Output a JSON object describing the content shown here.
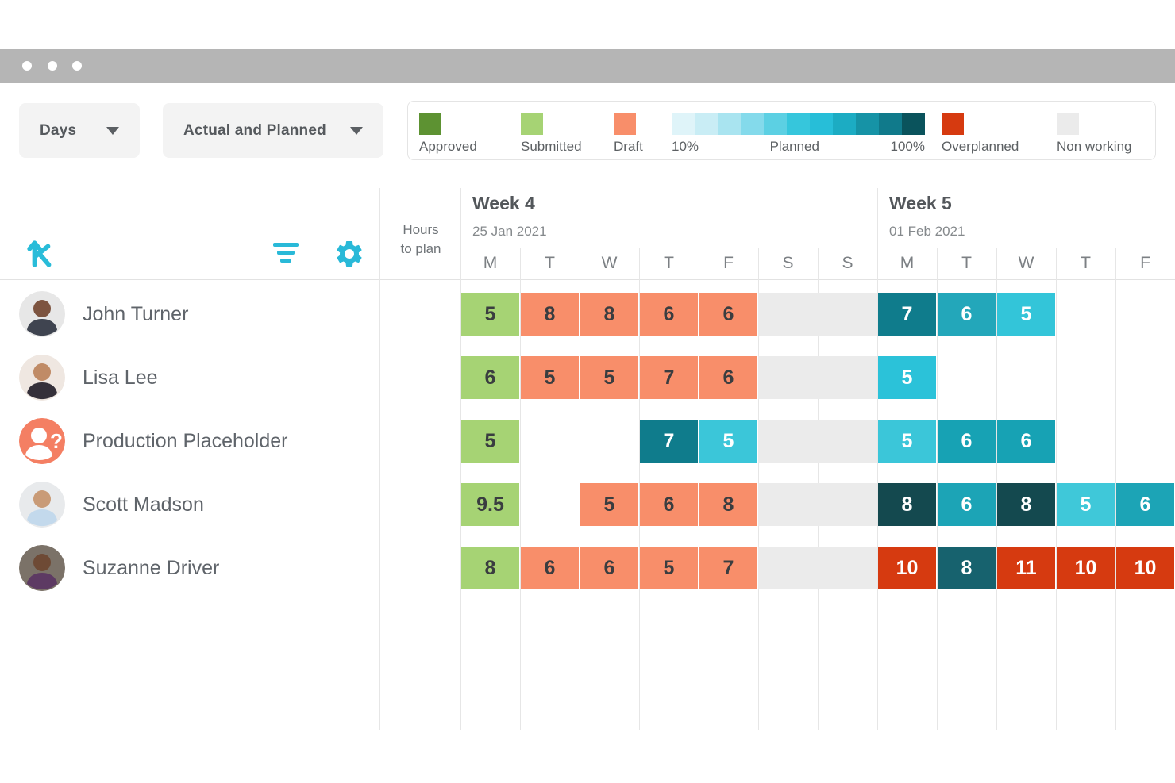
{
  "window": {
    "dot_count": 3
  },
  "toolbar": {
    "timescale_label": "Days",
    "view_label": "Actual and Planned"
  },
  "colors": {
    "accent": "#29b9d8",
    "approved": "#5d9232",
    "submitted": "#a6d374",
    "draft": "#f88e6a",
    "non_working": "#ebebeb",
    "overplanned": "#d63a10"
  },
  "legend": {
    "items": [
      {
        "kind": "swatch",
        "label": "Approved",
        "color": "#5d9232",
        "striped": true
      },
      {
        "kind": "swatch",
        "label": "Submitted",
        "color": "#a6d374",
        "striped": true
      },
      {
        "kind": "swatch",
        "label": "Draft",
        "color": "#f88e6a",
        "striped": true
      },
      {
        "kind": "gradient",
        "left_label": "10%",
        "mid_label": "Planned",
        "right_label": "100%",
        "colors": [
          "#dff4f9",
          "#c9edf5",
          "#a9e4f0",
          "#84daeb",
          "#5cd0e3",
          "#36c6dc",
          "#27bed8",
          "#1cacc3",
          "#1693a6",
          "#107a8b",
          "#0a535c"
        ]
      },
      {
        "kind": "swatch",
        "label": "Overplanned",
        "color": "#d63a10",
        "striped": false
      },
      {
        "kind": "swatch",
        "label": "Non working",
        "color": "#ebebeb",
        "striped": false
      }
    ]
  },
  "timeline": {
    "hours_label_line1": "Hours",
    "hours_label_line2": "to plan",
    "weeks": [
      {
        "title": "Week 4",
        "date": "25 Jan 2021",
        "days": [
          "M",
          "T",
          "W",
          "T",
          "F",
          "S",
          "S"
        ]
      },
      {
        "title": "Week 5",
        "date": "01 Feb 2021",
        "days": [
          "M",
          "T",
          "W",
          "T",
          "F"
        ]
      }
    ]
  },
  "rows": [
    {
      "name": "John Turner",
      "avatar": {
        "bg": "#e7e7e7",
        "skin": "#7d5440",
        "shirt": "#3f4450"
      },
      "cells": [
        {
          "t": "sub",
          "v": "5"
        },
        {
          "t": "draft",
          "v": "8"
        },
        {
          "t": "draft",
          "v": "8"
        },
        {
          "t": "draft",
          "v": "6"
        },
        {
          "t": "draft",
          "v": "6"
        },
        {
          "t": "non"
        },
        {
          "t": "non"
        },
        {
          "t": "plan",
          "v": "7",
          "c": "#0f7c8c"
        },
        {
          "t": "plan",
          "v": "6",
          "c": "#23a7ba"
        },
        {
          "t": "plan",
          "v": "5",
          "c": "#33c5d9"
        },
        null,
        null
      ]
    },
    {
      "name": "Lisa Lee",
      "avatar": {
        "bg": "#efe7e1",
        "skin": "#c08b66",
        "shirt": "#34303a"
      },
      "cells": [
        {
          "t": "sub",
          "v": "6"
        },
        {
          "t": "draft",
          "v": "5"
        },
        {
          "t": "draft",
          "v": "5"
        },
        {
          "t": "draft",
          "v": "7"
        },
        {
          "t": "draft",
          "v": "6"
        },
        {
          "t": "non"
        },
        {
          "t": "non"
        },
        {
          "t": "plan",
          "v": "5",
          "c": "#2bc2d9"
        },
        null,
        null,
        null,
        null
      ]
    },
    {
      "name": "Production Placeholder",
      "avatar": {
        "placeholder": true,
        "bg": "#f47f63"
      },
      "cells": [
        {
          "t": "sub",
          "v": "5"
        },
        null,
        null,
        {
          "t": "plan",
          "v": "7",
          "c": "#0f7c8c"
        },
        {
          "t": "plan",
          "v": "5",
          "c": "#3bc6d9"
        },
        {
          "t": "non"
        },
        {
          "t": "non"
        },
        {
          "t": "plan",
          "v": "5",
          "c": "#3bc6d9"
        },
        {
          "t": "plan",
          "v": "6",
          "c": "#17a2b4"
        },
        {
          "t": "plan",
          "v": "6",
          "c": "#17a2b4"
        },
        null,
        null
      ]
    },
    {
      "name": "Scott Madson",
      "avatar": {
        "bg": "#e8eaec",
        "skin": "#c99b77",
        "shirt": "#c3d9ec"
      },
      "cells": [
        {
          "t": "sub",
          "v": "9.5"
        },
        null,
        {
          "t": "draft",
          "v": "5"
        },
        {
          "t": "draft",
          "v": "6"
        },
        {
          "t": "draft",
          "v": "8"
        },
        {
          "t": "non"
        },
        {
          "t": "non"
        },
        {
          "t": "plan",
          "v": "8",
          "c": "#14494f"
        },
        {
          "t": "plan",
          "v": "6",
          "c": "#1ca4b6"
        },
        {
          "t": "plan",
          "v": "8",
          "c": "#14494f"
        },
        {
          "t": "plan",
          "v": "5",
          "c": "#3fc8d9"
        },
        {
          "t": "plan",
          "v": "6",
          "c": "#1ca4b6"
        }
      ]
    },
    {
      "name": "Suzanne Driver",
      "avatar": {
        "bg": "#7b7268",
        "skin": "#6e4a35",
        "shirt": "#5d3a63"
      },
      "cells": [
        {
          "t": "sub",
          "v": "8"
        },
        {
          "t": "draft",
          "v": "6"
        },
        {
          "t": "draft",
          "v": "6"
        },
        {
          "t": "draft",
          "v": "5"
        },
        {
          "t": "draft",
          "v": "7"
        },
        {
          "t": "non"
        },
        {
          "t": "non"
        },
        {
          "t": "over",
          "v": "10"
        },
        {
          "t": "plan",
          "v": "8",
          "c": "#17626e"
        },
        {
          "t": "over",
          "v": "11"
        },
        {
          "t": "over",
          "v": "10"
        },
        {
          "t": "over",
          "v": "10"
        }
      ]
    }
  ]
}
